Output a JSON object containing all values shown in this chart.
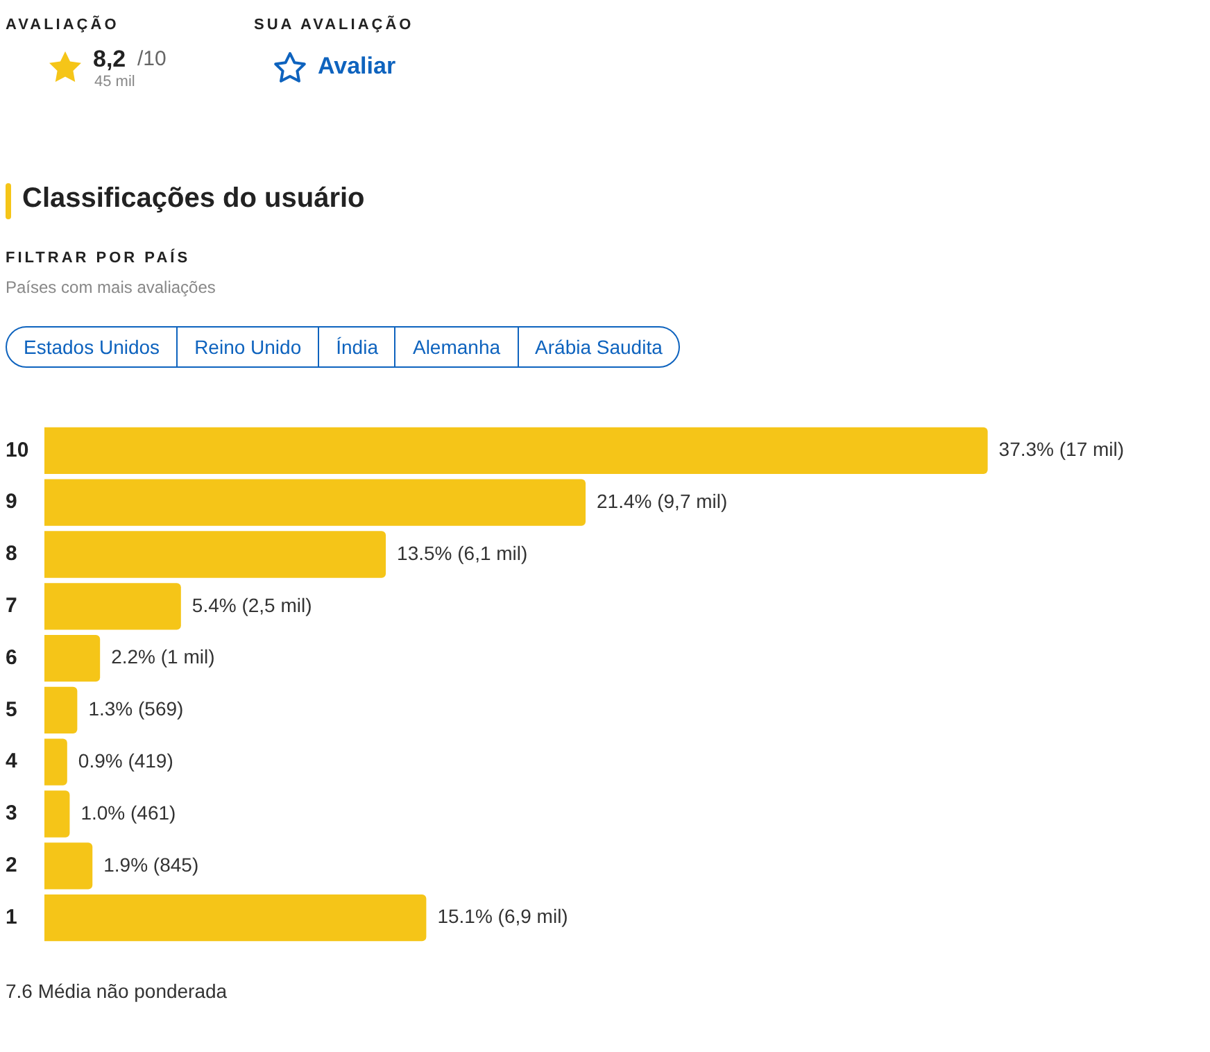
{
  "chart_data": {
    "type": "bar",
    "orientation": "horizontal",
    "title": "Classificações do usuário",
    "categories": [
      "10",
      "9",
      "8",
      "7",
      "6",
      "5",
      "4",
      "3",
      "2",
      "1"
    ],
    "values": [
      37.3,
      21.4,
      13.5,
      5.4,
      2.2,
      1.3,
      0.9,
      1.0,
      1.9,
      15.1
    ],
    "value_labels": [
      "37.3% (17 mil)",
      "21.4% (9,7 mil)",
      "13.5% (6,1 mil)",
      "5.4% (2,5 mil)",
      "2.2% (1 mil)",
      "1.3% (569)",
      "0.9% (419)",
      "1.0% (461)",
      "1.9% (845)",
      "15.1% (6,9 mil)"
    ],
    "color": "#f5c518",
    "tick_labels": "y",
    "legend": false,
    "annotations": [
      "AVALIAÇÃO",
      "8,2",
      "/10",
      "45 mil",
      "SUA AVALIAÇÃO",
      "Avaliar",
      "FILTRAR POR PAÍS",
      "Países com mais avaliações",
      "Estados Unidos",
      "Reino Unido",
      "Índia",
      "Alemanha",
      "Arábia Saudita",
      "7.6 Média não ponderada"
    ]
  }
}
